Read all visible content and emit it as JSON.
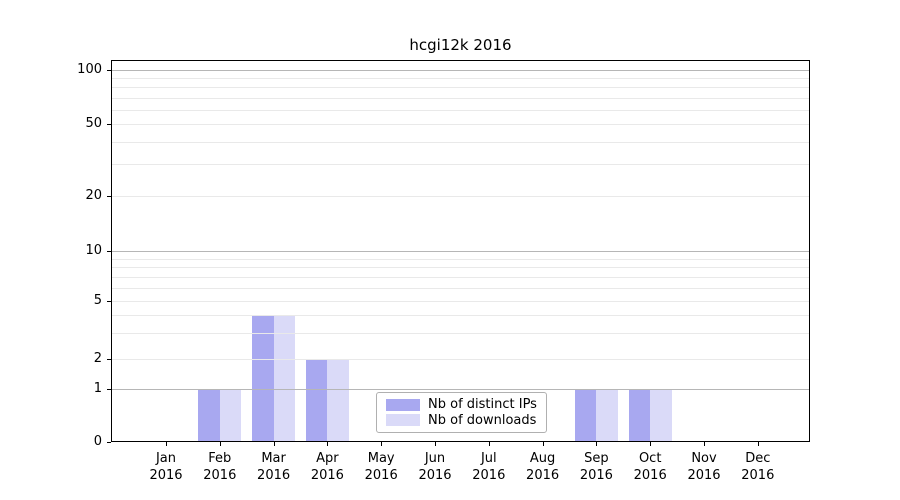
{
  "chart_data": {
    "type": "bar",
    "title": "hcgi12k 2016",
    "year_label": "2016",
    "categories": [
      "Jan",
      "Feb",
      "Mar",
      "Apr",
      "May",
      "Jun",
      "Jul",
      "Aug",
      "Sep",
      "Oct",
      "Nov",
      "Dec"
    ],
    "series": [
      {
        "name": "Nb of distinct IPs",
        "color": "#a8a8f0",
        "values": [
          0,
          1,
          4,
          2,
          0,
          0,
          0,
          0,
          1,
          1,
          0,
          0
        ]
      },
      {
        "name": "Nb of downloads",
        "color": "#dadaf8",
        "values": [
          0,
          1,
          4,
          2,
          0,
          0,
          0,
          0,
          1,
          1,
          0,
          0
        ]
      }
    ],
    "yticks": [
      0,
      1,
      2,
      5,
      10,
      20,
      50,
      100
    ],
    "ylim": [
      0,
      115
    ],
    "yscale": "log-like (linear 0-1, log above 1)",
    "gridlines_major": [
      1,
      10,
      100
    ],
    "gridlines_minor": [
      2,
      3,
      4,
      5,
      6,
      7,
      8,
      9,
      20,
      30,
      40,
      50,
      60,
      70,
      80,
      90
    ],
    "grid": "horizontal only",
    "legend_position": "inside bottom-center",
    "xlabel": "",
    "ylabel": ""
  },
  "colors": {
    "background": "#ffffff",
    "axis": "#000000",
    "text": "#000000",
    "grid_major": "#b6b6b6",
    "grid_minor": "#e9e9e9",
    "legend_border": "#b0b0b0"
  }
}
